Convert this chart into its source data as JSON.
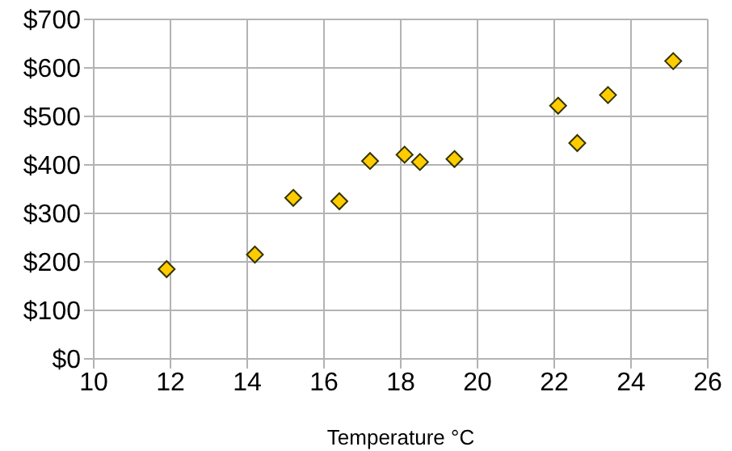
{
  "chart_data": {
    "type": "scatter",
    "xlabel": "Temperature °C",
    "x": [
      14.2,
      16.4,
      11.9,
      15.2,
      18.5,
      22.1,
      19.4,
      25.1,
      23.4,
      18.1,
      22.6,
      17.2
    ],
    "series": [
      {
        "color": "#ffcc00",
        "values": [
          215,
          325,
          185,
          332,
          406,
          522,
          412,
          614,
          544,
          421,
          445,
          408
        ]
      }
    ],
    "xlim": [
      10,
      26
    ],
    "xticks": [
      10,
      12,
      14,
      16,
      18,
      20,
      22,
      24,
      26
    ],
    "ylim": [
      0,
      700
    ],
    "yticks": [
      {
        "value": 0,
        "label": "$0"
      },
      {
        "value": 100,
        "label": "$100"
      },
      {
        "value": 200,
        "label": "$200"
      },
      {
        "value": 300,
        "label": "$300"
      },
      {
        "value": 400,
        "label": "$400"
      },
      {
        "value": 500,
        "label": "$500"
      },
      {
        "value": 600,
        "label": "$600"
      },
      {
        "value": 700,
        "label": "$700"
      }
    ],
    "grid": true,
    "marker": "diamond",
    "legend": false
  }
}
